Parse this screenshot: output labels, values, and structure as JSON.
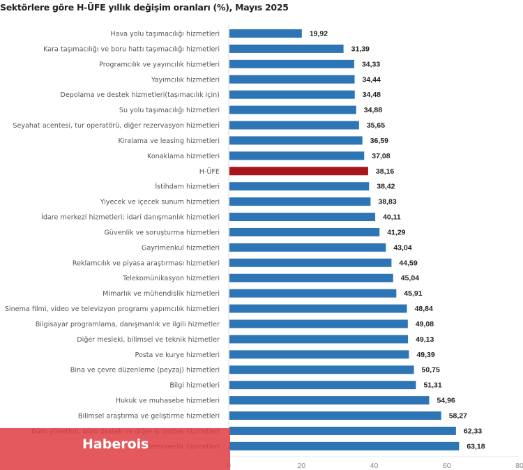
{
  "chart_data": {
    "type": "bar",
    "orientation": "horizontal",
    "title": "Sektörlere göre H-ÜFE yıllık değişim oranları (%), Mayıs 2025",
    "xlabel": "",
    "ylabel": "",
    "xlim": [
      0,
      80
    ],
    "x_ticks": [
      "0",
      "20",
      "40",
      "60",
      "80"
    ],
    "x_tick_values": [
      0,
      20,
      40,
      60,
      80
    ],
    "grid": false,
    "legend": "none",
    "categories": [
      "Hava yolu taşımacılığı hizmetleri",
      "Kara taşımacılığı ve boru hattı taşımacılığı hizmetleri",
      "Programcılık ve yayıncılık hizmetleri",
      "Yayımcılık hizmetleri",
      "Depolama ve destek hizmetleri(taşımacılık için)",
      "Su yolu taşımacılığı hizmetleri",
      "Seyahat acentesi, tur operatörü, diğer rezervasyon hizmetleri",
      "Kiralama ve leasing hizmetleri",
      "Konaklama hizmetleri",
      "H-ÜFE",
      "İstihdam hizmetleri",
      "Yiyecek ve içecek sunum hizmetleri",
      "İdare merkezi hizmetleri; idari danışmanlık hizmetleri",
      "Güvenlik ve soruşturma hizmetleri",
      "Gayrimenkul hizmetleri",
      "Reklamcılık ve piyasa araştırması hizmetleri",
      "Telekomünikasyon hizmetleri",
      "Mimarlık ve mühendislik hizmetleri",
      "Sinema filmi, video ve televizyon programı yapımcılık hizmetleri",
      "Bilgisayar programlama, danışmanlık ve ilgili hizmetler",
      "Diğer mesleki, bilimsel ve teknik hizmetler",
      "Posta ve kurye hizmetleri",
      "Bina ve çevre düzenleme (peyzaj) hizmetleri",
      "Bilgi hizmetleri",
      "Hukuk ve muhasebe hizmetleri",
      "Bilimsel araştırma ve geliştirme hizmetleri",
      "Büro yönetimi, büro destek ve diğer iş destek hizmetleri",
      "Veterinerlik hizmetleri"
    ],
    "values": [
      19.92,
      31.39,
      34.33,
      34.44,
      34.48,
      34.88,
      35.65,
      36.59,
      37.08,
      38.16,
      38.42,
      38.83,
      40.11,
      41.29,
      43.04,
      44.59,
      45.04,
      45.91,
      48.84,
      49.08,
      49.13,
      49.39,
      50.75,
      51.31,
      54.96,
      58.27,
      62.33,
      63.18
    ],
    "value_labels": [
      "19,92",
      "31,39",
      "34,33",
      "34,44",
      "34,48",
      "34,88",
      "35,65",
      "36,59",
      "37,08",
      "38,16",
      "38,42",
      "38,83",
      "40,11",
      "41,29",
      "43,04",
      "44,59",
      "45,04",
      "45,91",
      "48,84",
      "49,08",
      "49,13",
      "49,39",
      "50,75",
      "51,31",
      "54,96",
      "58,27",
      "62,33",
      "63,18"
    ],
    "highlight_index": 9,
    "colors": {
      "bar": "#2e75b6",
      "highlight": "#a8151b",
      "axis": "#d9d9d9"
    }
  },
  "watermark": {
    "text": "Haberois",
    "color": "#de3c42"
  }
}
